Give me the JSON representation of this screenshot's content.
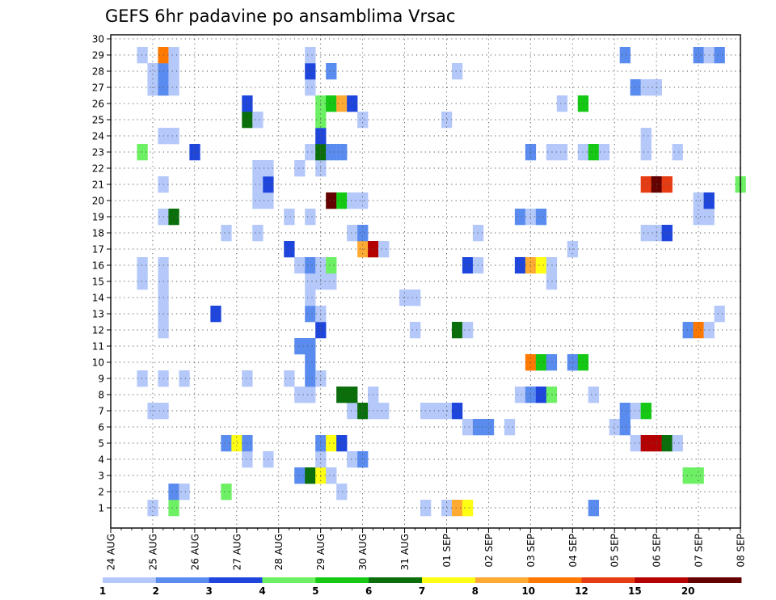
{
  "chart_data": {
    "type": "heatmap",
    "title": "GEFS 6hr padavine po ansamblima Vrsac",
    "xlabel": "",
    "ylabel": "",
    "x_tick_labels": [
      "24 AUG",
      "25 AUG",
      "26 AUG",
      "27 AUG",
      "28 AUG",
      "29 AUG",
      "30 AUG",
      "31 AUG",
      "01 SEP",
      "02 SEP",
      "03 SEP",
      "04 SEP",
      "05 SEP",
      "06 SEP",
      "07 SEP",
      "08 SEP"
    ],
    "y_tick_labels": [
      "1",
      "2",
      "3",
      "4",
      "5",
      "6",
      "7",
      "8",
      "9",
      "10",
      "11",
      "12",
      "13",
      "14",
      "15",
      "16",
      "17",
      "18",
      "19",
      "20",
      "21",
      "22",
      "23",
      "24",
      "25",
      "26",
      "27",
      "28",
      "29",
      "30"
    ],
    "steps_per_day": 4,
    "time_steps": 61,
    "members": 30,
    "grid": true,
    "colorbar": {
      "position": "bottom",
      "bins": [
        {
          "label": "1",
          "color": "#b4c8fa"
        },
        {
          "label": "2",
          "color": "#5a8cf0"
        },
        {
          "label": "3",
          "color": "#1e46dc"
        },
        {
          "label": "4",
          "color": "#6ef064"
        },
        {
          "label": "5",
          "color": "#14c814"
        },
        {
          "label": "6",
          "color": "#0a6e0a"
        },
        {
          "label": "7",
          "color": "#ffff14"
        },
        {
          "label": "8",
          "color": "#ffaa32"
        },
        {
          "label": "10",
          "color": "#ff7800"
        },
        {
          "label": "12",
          "color": "#e63c14"
        },
        {
          "label": "15",
          "color": "#b40000"
        },
        {
          "label": "20",
          "color": "#640000"
        }
      ],
      "final_color": "#640000"
    },
    "cells": [
      {
        "member": 1,
        "step": 4,
        "level": 0
      },
      {
        "member": 1,
        "step": 6,
        "level": 3
      },
      {
        "member": 1,
        "step": 30,
        "level": 0
      },
      {
        "member": 1,
        "step": 32,
        "level": 0
      },
      {
        "member": 1,
        "step": 33,
        "level": 7
      },
      {
        "member": 1,
        "step": 34,
        "level": 6
      },
      {
        "member": 1,
        "step": 46,
        "level": 1
      },
      {
        "member": 2,
        "step": 6,
        "level": 1
      },
      {
        "member": 2,
        "step": 7,
        "level": 0
      },
      {
        "member": 2,
        "step": 11,
        "level": 3
      },
      {
        "member": 2,
        "step": 22,
        "level": 0
      },
      {
        "member": 3,
        "step": 18,
        "level": 1
      },
      {
        "member": 3,
        "step": 19,
        "level": 5
      },
      {
        "member": 3,
        "step": 20,
        "level": 6
      },
      {
        "member": 3,
        "step": 21,
        "level": 0
      },
      {
        "member": 3,
        "step": 55,
        "level": 3
      },
      {
        "member": 3,
        "step": 56,
        "level": 3
      },
      {
        "member": 4,
        "step": 13,
        "level": 0
      },
      {
        "member": 4,
        "step": 15,
        "level": 0
      },
      {
        "member": 4,
        "step": 20,
        "level": 0
      },
      {
        "member": 4,
        "step": 23,
        "level": 0
      },
      {
        "member": 4,
        "step": 24,
        "level": 1
      },
      {
        "member": 5,
        "step": 11,
        "level": 1
      },
      {
        "member": 5,
        "step": 12,
        "level": 6
      },
      {
        "member": 5,
        "step": 13,
        "level": 1
      },
      {
        "member": 5,
        "step": 20,
        "level": 1
      },
      {
        "member": 5,
        "step": 21,
        "level": 6
      },
      {
        "member": 5,
        "step": 22,
        "level": 2
      },
      {
        "member": 5,
        "step": 50,
        "level": 0
      },
      {
        "member": 5,
        "step": 51,
        "level": 10
      },
      {
        "member": 5,
        "step": 52,
        "level": 10
      },
      {
        "member": 5,
        "step": 53,
        "level": 5
      },
      {
        "member": 5,
        "step": 54,
        "level": 0
      },
      {
        "member": 6,
        "step": 34,
        "level": 0
      },
      {
        "member": 6,
        "step": 35,
        "level": 1
      },
      {
        "member": 6,
        "step": 36,
        "level": 1
      },
      {
        "member": 6,
        "step": 38,
        "level": 0
      },
      {
        "member": 6,
        "step": 48,
        "level": 0
      },
      {
        "member": 6,
        "step": 49,
        "level": 1
      },
      {
        "member": 7,
        "step": 4,
        "level": 0
      },
      {
        "member": 7,
        "step": 5,
        "level": 0
      },
      {
        "member": 7,
        "step": 23,
        "level": 0
      },
      {
        "member": 7,
        "step": 24,
        "level": 5
      },
      {
        "member": 7,
        "step": 25,
        "level": 0
      },
      {
        "member": 7,
        "step": 26,
        "level": 0
      },
      {
        "member": 7,
        "step": 30,
        "level": 0
      },
      {
        "member": 7,
        "step": 31,
        "level": 0
      },
      {
        "member": 7,
        "step": 32,
        "level": 0
      },
      {
        "member": 7,
        "step": 33,
        "level": 2
      },
      {
        "member": 7,
        "step": 49,
        "level": 1
      },
      {
        "member": 7,
        "step": 50,
        "level": 0
      },
      {
        "member": 7,
        "step": 51,
        "level": 4
      },
      {
        "member": 8,
        "step": 18,
        "level": 0
      },
      {
        "member": 8,
        "step": 19,
        "level": 0
      },
      {
        "member": 8,
        "step": 22,
        "level": 5
      },
      {
        "member": 8,
        "step": 23,
        "level": 5
      },
      {
        "member": 8,
        "step": 25,
        "level": 0
      },
      {
        "member": 8,
        "step": 39,
        "level": 0
      },
      {
        "member": 8,
        "step": 40,
        "level": 1
      },
      {
        "member": 8,
        "step": 41,
        "level": 2
      },
      {
        "member": 8,
        "step": 42,
        "level": 3
      },
      {
        "member": 8,
        "step": 46,
        "level": 0
      },
      {
        "member": 9,
        "step": 3,
        "level": 0
      },
      {
        "member": 9,
        "step": 5,
        "level": 0
      },
      {
        "member": 9,
        "step": 7,
        "level": 0
      },
      {
        "member": 9,
        "step": 13,
        "level": 0
      },
      {
        "member": 9,
        "step": 17,
        "level": 0
      },
      {
        "member": 9,
        "step": 19,
        "level": 1
      },
      {
        "member": 9,
        "step": 20,
        "level": 0
      },
      {
        "member": 10,
        "step": 19,
        "level": 1
      },
      {
        "member": 10,
        "step": 40,
        "level": 8
      },
      {
        "member": 10,
        "step": 41,
        "level": 4
      },
      {
        "member": 10,
        "step": 42,
        "level": 1
      },
      {
        "member": 10,
        "step": 44,
        "level": 1
      },
      {
        "member": 10,
        "step": 45,
        "level": 4
      },
      {
        "member": 11,
        "step": 18,
        "level": 1
      },
      {
        "member": 11,
        "step": 19,
        "level": 1
      },
      {
        "member": 12,
        "step": 5,
        "level": 0
      },
      {
        "member": 12,
        "step": 20,
        "level": 2
      },
      {
        "member": 12,
        "step": 29,
        "level": 0
      },
      {
        "member": 12,
        "step": 33,
        "level": 5
      },
      {
        "member": 12,
        "step": 34,
        "level": 0
      },
      {
        "member": 12,
        "step": 55,
        "level": 1
      },
      {
        "member": 12,
        "step": 56,
        "level": 8
      },
      {
        "member": 12,
        "step": 57,
        "level": 0
      },
      {
        "member": 13,
        "step": 5,
        "level": 0
      },
      {
        "member": 13,
        "step": 10,
        "level": 2
      },
      {
        "member": 13,
        "step": 19,
        "level": 1
      },
      {
        "member": 13,
        "step": 20,
        "level": 0
      },
      {
        "member": 13,
        "step": 58,
        "level": 0
      },
      {
        "member": 14,
        "step": 5,
        "level": 0
      },
      {
        "member": 14,
        "step": 19,
        "level": 0
      },
      {
        "member": 14,
        "step": 28,
        "level": 0
      },
      {
        "member": 14,
        "step": 29,
        "level": 0
      },
      {
        "member": 15,
        "step": 3,
        "level": 0
      },
      {
        "member": 15,
        "step": 5,
        "level": 0
      },
      {
        "member": 15,
        "step": 19,
        "level": 0
      },
      {
        "member": 15,
        "step": 20,
        "level": 0
      },
      {
        "member": 15,
        "step": 21,
        "level": 0
      },
      {
        "member": 15,
        "step": 42,
        "level": 0
      },
      {
        "member": 16,
        "step": 3,
        "level": 0
      },
      {
        "member": 16,
        "step": 5,
        "level": 0
      },
      {
        "member": 16,
        "step": 18,
        "level": 0
      },
      {
        "member": 16,
        "step": 19,
        "level": 1
      },
      {
        "member": 16,
        "step": 20,
        "level": 0
      },
      {
        "member": 16,
        "step": 21,
        "level": 3
      },
      {
        "member": 16,
        "step": 34,
        "level": 2
      },
      {
        "member": 16,
        "step": 35,
        "level": 0
      },
      {
        "member": 16,
        "step": 39,
        "level": 2
      },
      {
        "member": 16,
        "step": 40,
        "level": 7
      },
      {
        "member": 16,
        "step": 41,
        "level": 6
      },
      {
        "member": 16,
        "step": 42,
        "level": 0
      },
      {
        "member": 17,
        "step": 17,
        "level": 2
      },
      {
        "member": 17,
        "step": 24,
        "level": 7
      },
      {
        "member": 17,
        "step": 25,
        "level": 10
      },
      {
        "member": 17,
        "step": 26,
        "level": 0
      },
      {
        "member": 17,
        "step": 44,
        "level": 0
      },
      {
        "member": 18,
        "step": 11,
        "level": 0
      },
      {
        "member": 18,
        "step": 14,
        "level": 0
      },
      {
        "member": 18,
        "step": 23,
        "level": 0
      },
      {
        "member": 18,
        "step": 24,
        "level": 1
      },
      {
        "member": 18,
        "step": 35,
        "level": 0
      },
      {
        "member": 18,
        "step": 51,
        "level": 0
      },
      {
        "member": 18,
        "step": 52,
        "level": 0
      },
      {
        "member": 18,
        "step": 53,
        "level": 2
      },
      {
        "member": 19,
        "step": 5,
        "level": 0
      },
      {
        "member": 19,
        "step": 6,
        "level": 5
      },
      {
        "member": 19,
        "step": 17,
        "level": 0
      },
      {
        "member": 19,
        "step": 19,
        "level": 0
      },
      {
        "member": 19,
        "step": 39,
        "level": 1
      },
      {
        "member": 19,
        "step": 40,
        "level": 0
      },
      {
        "member": 19,
        "step": 41,
        "level": 1
      },
      {
        "member": 19,
        "step": 56,
        "level": 0
      },
      {
        "member": 19,
        "step": 57,
        "level": 0
      },
      {
        "member": 20,
        "step": 14,
        "level": 0
      },
      {
        "member": 20,
        "step": 15,
        "level": 0
      },
      {
        "member": 20,
        "step": 21,
        "level": 11
      },
      {
        "member": 20,
        "step": 22,
        "level": 4
      },
      {
        "member": 20,
        "step": 23,
        "level": 0
      },
      {
        "member": 20,
        "step": 24,
        "level": 0
      },
      {
        "member": 20,
        "step": 56,
        "level": 0
      },
      {
        "member": 20,
        "step": 57,
        "level": 2
      },
      {
        "member": 21,
        "step": 5,
        "level": 0
      },
      {
        "member": 21,
        "step": 14,
        "level": 0
      },
      {
        "member": 21,
        "step": 15,
        "level": 2
      },
      {
        "member": 21,
        "step": 51,
        "level": 9
      },
      {
        "member": 21,
        "step": 52,
        "level": 11
      },
      {
        "member": 21,
        "step": 53,
        "level": 9
      },
      {
        "member": 21,
        "step": 60,
        "level": 3
      },
      {
        "member": 22,
        "step": 14,
        "level": 0
      },
      {
        "member": 22,
        "step": 15,
        "level": 0
      },
      {
        "member": 22,
        "step": 18,
        "level": 0
      },
      {
        "member": 22,
        "step": 20,
        "level": 0
      },
      {
        "member": 23,
        "step": 3,
        "level": 3
      },
      {
        "member": 23,
        "step": 8,
        "level": 2
      },
      {
        "member": 23,
        "step": 19,
        "level": 0
      },
      {
        "member": 23,
        "step": 20,
        "level": 5
      },
      {
        "member": 23,
        "step": 21,
        "level": 1
      },
      {
        "member": 23,
        "step": 22,
        "level": 1
      },
      {
        "member": 23,
        "step": 40,
        "level": 1
      },
      {
        "member": 23,
        "step": 42,
        "level": 0
      },
      {
        "member": 23,
        "step": 43,
        "level": 0
      },
      {
        "member": 23,
        "step": 45,
        "level": 0
      },
      {
        "member": 23,
        "step": 46,
        "level": 4
      },
      {
        "member": 23,
        "step": 47,
        "level": 0
      },
      {
        "member": 23,
        "step": 51,
        "level": 0
      },
      {
        "member": 23,
        "step": 54,
        "level": 0
      },
      {
        "member": 24,
        "step": 5,
        "level": 0
      },
      {
        "member": 24,
        "step": 6,
        "level": 0
      },
      {
        "member": 24,
        "step": 20,
        "level": 2
      },
      {
        "member": 24,
        "step": 51,
        "level": 0
      },
      {
        "member": 25,
        "step": 13,
        "level": 5
      },
      {
        "member": 25,
        "step": 14,
        "level": 0
      },
      {
        "member": 25,
        "step": 20,
        "level": 3
      },
      {
        "member": 25,
        "step": 24,
        "level": 0
      },
      {
        "member": 25,
        "step": 32,
        "level": 0
      },
      {
        "member": 26,
        "step": 13,
        "level": 2
      },
      {
        "member": 26,
        "step": 20,
        "level": 3
      },
      {
        "member": 26,
        "step": 21,
        "level": 4
      },
      {
        "member": 26,
        "step": 22,
        "level": 7
      },
      {
        "member": 26,
        "step": 23,
        "level": 2
      },
      {
        "member": 26,
        "step": 43,
        "level": 0
      },
      {
        "member": 26,
        "step": 45,
        "level": 4
      },
      {
        "member": 27,
        "step": 4,
        "level": 0
      },
      {
        "member": 27,
        "step": 5,
        "level": 1
      },
      {
        "member": 27,
        "step": 6,
        "level": 0
      },
      {
        "member": 27,
        "step": 19,
        "level": 0
      },
      {
        "member": 27,
        "step": 50,
        "level": 1
      },
      {
        "member": 27,
        "step": 51,
        "level": 0
      },
      {
        "member": 27,
        "step": 52,
        "level": 0
      },
      {
        "member": 28,
        "step": 4,
        "level": 0
      },
      {
        "member": 28,
        "step": 5,
        "level": 1
      },
      {
        "member": 28,
        "step": 6,
        "level": 0
      },
      {
        "member": 28,
        "step": 19,
        "level": 2
      },
      {
        "member": 28,
        "step": 21,
        "level": 1
      },
      {
        "member": 28,
        "step": 33,
        "level": 0
      },
      {
        "member": 29,
        "step": 3,
        "level": 0
      },
      {
        "member": 29,
        "step": 5,
        "level": 8
      },
      {
        "member": 29,
        "step": 6,
        "level": 0
      },
      {
        "member": 29,
        "step": 19,
        "level": 0
      },
      {
        "member": 29,
        "step": 49,
        "level": 1
      },
      {
        "member": 29,
        "step": 56,
        "level": 1
      },
      {
        "member": 29,
        "step": 57,
        "level": 0
      },
      {
        "member": 29,
        "step": 58,
        "level": 1
      }
    ]
  }
}
